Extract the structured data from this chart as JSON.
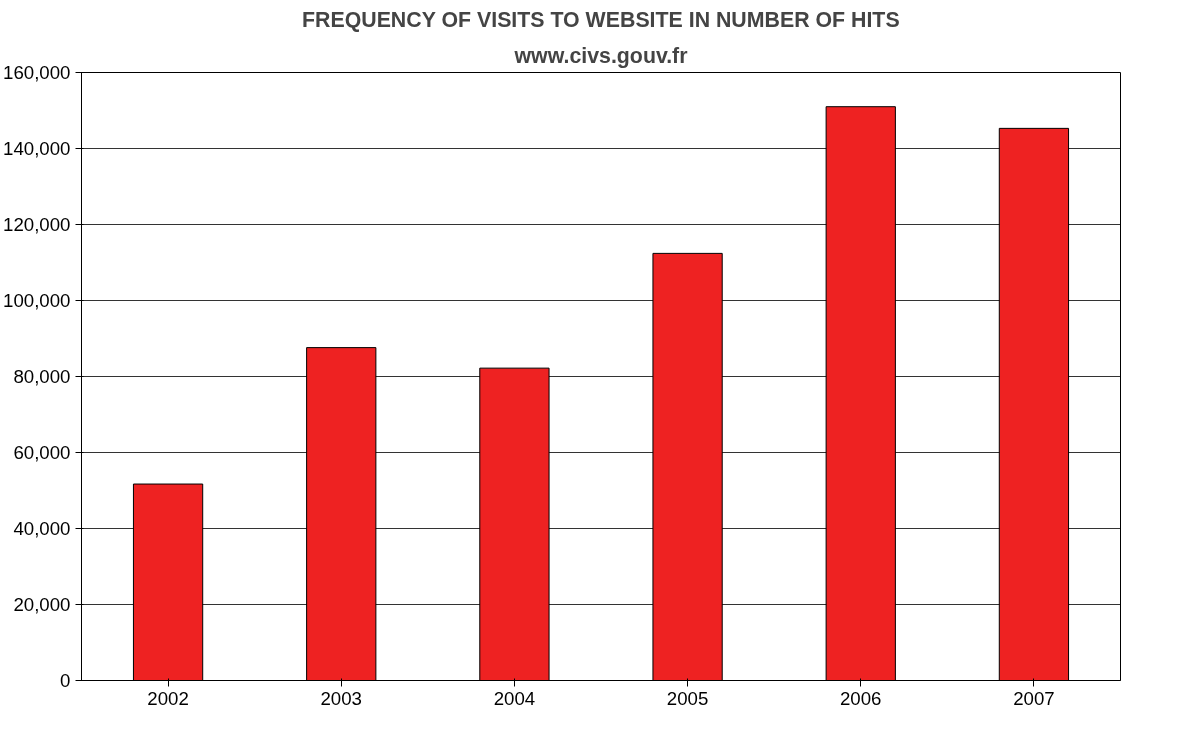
{
  "chart_data": {
    "type": "bar",
    "title": "FREQUENCY OF VISITS TO WEBSITE IN NUMBER OF HITS",
    "subtitle": "www.civs.gouv.fr",
    "categories": [
      "2002",
      "2003",
      "2004",
      "2005",
      "2006",
      "2007"
    ],
    "values": [
      51700,
      87600,
      82200,
      112400,
      151000,
      145300
    ],
    "color": "#ee2222",
    "ylim": [
      0,
      160000
    ],
    "yticks": [
      {
        "value": 0,
        "label": "0"
      },
      {
        "value": 20000,
        "label": "20,000"
      },
      {
        "value": 40000,
        "label": "40,000"
      },
      {
        "value": 60000,
        "label": "60,000"
      },
      {
        "value": 80000,
        "label": "80,000"
      },
      {
        "value": 100000,
        "label": "100,000"
      },
      {
        "value": 120000,
        "label": "120,000"
      },
      {
        "value": 140000,
        "label": "140,000"
      },
      {
        "value": 160000,
        "label": "160,000"
      }
    ],
    "grid": "y"
  }
}
